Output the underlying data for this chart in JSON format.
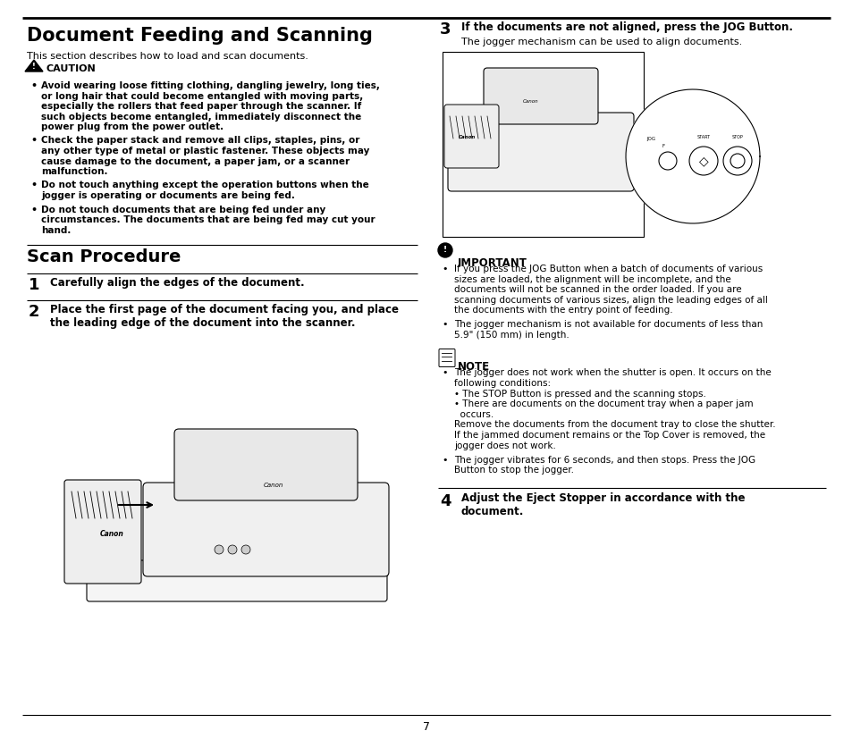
{
  "page_bg": "#ffffff",
  "text_color": "#000000",
  "page_number": "7",
  "left_col": {
    "title": "Document Feeding and Scanning",
    "subtitle": "This section describes how to load and scan documents.",
    "caution_header": "CAUTION",
    "caution_bullets": [
      "Avoid wearing loose fitting clothing, dangling jewelry, long ties,\nor long hair that could become entangled with moving parts,\nespecially the rollers that feed paper through the scanner. If\nsuch objects become entangled, immediately disconnect the\npower plug from the power outlet.",
      "Check the paper stack and remove all clips, staples, pins, or\nany other type of metal or plastic fastener. These objects may\ncause damage to the document, a paper jam, or a scanner\nmalfunction.",
      "Do not touch anything except the operation buttons when the\njogger is operating or documents are being fed.",
      "Do not touch documents that are being fed under any\ncircumstances. The documents that are being fed may cut your\nhand."
    ],
    "scan_header": "Scan Procedure",
    "step1_text": "Carefully align the edges of the document.",
    "step2_text": "Place the first page of the document facing you, and place\nthe leading edge of the document into the scanner."
  },
  "right_col": {
    "step3_bold": "If the documents are not aligned, press the JOG Button.",
    "step3_sub": "The jogger mechanism can be used to align documents.",
    "important_header": "IMPORTANT",
    "important_bullets": [
      "If you press the JOG Button when a batch of documents of various\nsizes are loaded, the alignment will be incomplete, and the\ndocuments will not be scanned in the order loaded. If you are\nscanning documents of various sizes, align the leading edges of all\nthe documents with the entry point of feeding.",
      "The jogger mechanism is not available for documents of less than\n5.9\" (150 mm) in length."
    ],
    "note_header": "NOTE",
    "note_bullets": [
      "The jogger does not work when the shutter is open. It occurs on the\nfollowing conditions:\n• The STOP Button is pressed and the scanning stops.\n• There are documents on the document tray when a paper jam\n  occurs.\nRemove the documents from the document tray to close the shutter.\nIf the jammed document remains or the Top Cover is removed, the\njogger does not work.",
      "The jogger vibrates for 6 seconds, and then stops. Press the JOG\nButton to stop the jogger."
    ],
    "step4_text": "Adjust the Eject Stopper in accordance with the\ndocument."
  }
}
